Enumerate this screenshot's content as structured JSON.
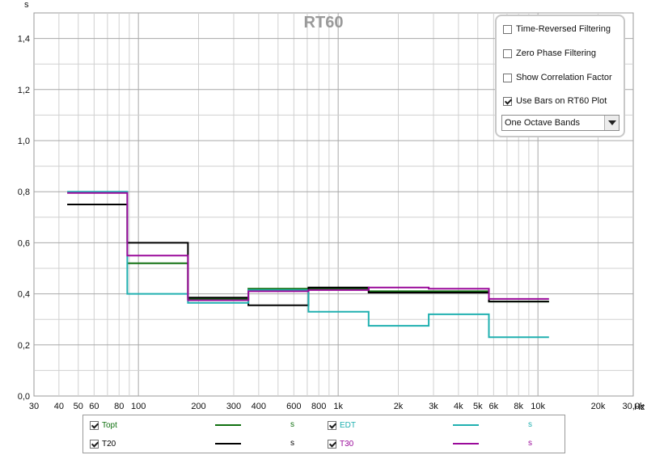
{
  "chart_data": {
    "type": "line",
    "title": "RT60",
    "ylabel": "s",
    "xlabel": "Hz",
    "x_scale": "log",
    "xlim": [
      30,
      30000
    ],
    "ylim": [
      0,
      1.5
    ],
    "x_ticks": [
      {
        "value": 30,
        "label": "30"
      },
      {
        "value": 40,
        "label": "40"
      },
      {
        "value": 50,
        "label": "50"
      },
      {
        "value": 60,
        "label": "60"
      },
      {
        "value": 80,
        "label": "80"
      },
      {
        "value": 100,
        "label": "100"
      },
      {
        "value": 200,
        "label": "200"
      },
      {
        "value": 300,
        "label": "300"
      },
      {
        "value": 400,
        "label": "400"
      },
      {
        "value": 600,
        "label": "600"
      },
      {
        "value": 800,
        "label": "800"
      },
      {
        "value": 1000,
        "label": "1k"
      },
      {
        "value": 2000,
        "label": "2k"
      },
      {
        "value": 3000,
        "label": "3k"
      },
      {
        "value": 4000,
        "label": "4k"
      },
      {
        "value": 5000,
        "label": "5k"
      },
      {
        "value": 6000,
        "label": "6k"
      },
      {
        "value": 8000,
        "label": "8k"
      },
      {
        "value": 10000,
        "label": "10k"
      },
      {
        "value": 20000,
        "label": "20k"
      },
      {
        "value": 30000,
        "label": "30,0k"
      }
    ],
    "y_ticks": [
      {
        "value": 0.0,
        "label": "0,0"
      },
      {
        "value": 0.2,
        "label": "0,2"
      },
      {
        "value": 0.4,
        "label": "0,4"
      },
      {
        "value": 0.6,
        "label": "0,6"
      },
      {
        "value": 0.8,
        "label": "0,8"
      },
      {
        "value": 1.0,
        "label": "1,0"
      },
      {
        "value": 1.2,
        "label": "1,2"
      },
      {
        "value": 1.4,
        "label": "1,4"
      }
    ],
    "grid": true,
    "bar_edges_hz": [
      44,
      88,
      177,
      355,
      710,
      1420,
      2840,
      5680,
      11360
    ],
    "series": [
      {
        "name": "Topt",
        "color": "#107010",
        "values": [
          null,
          0.52,
          0.38,
          0.42,
          0.42,
          0.41,
          0.41,
          0.37
        ]
      },
      {
        "name": "T20",
        "color": "#000000",
        "values": [
          0.75,
          0.6,
          0.385,
          0.355,
          0.425,
          0.405,
          0.405,
          0.37
        ]
      },
      {
        "name": "EDT",
        "color": "#20b0b0",
        "values": [
          0.8,
          0.4,
          0.365,
          0.415,
          0.33,
          0.275,
          0.32,
          0.23
        ]
      },
      {
        "name": "T30",
        "color": "#9a0a9a",
        "values": [
          0.795,
          0.55,
          0.375,
          0.41,
          0.415,
          0.425,
          0.42,
          0.38
        ]
      }
    ]
  },
  "options": {
    "time_reversed": {
      "label": "Time-Reversed Filtering",
      "checked": false
    },
    "zero_phase": {
      "label": "Zero Phase Filtering",
      "checked": false
    },
    "correlation": {
      "label": "Show Correlation Factor",
      "checked": false
    },
    "use_bars": {
      "label": "Use Bars on RT60 Plot",
      "checked": true
    },
    "band_select": {
      "value": "One Octave Bands"
    }
  },
  "legend": {
    "items": [
      {
        "label": "Topt",
        "unit": "s",
        "checked": true,
        "color": "#107010"
      },
      {
        "label": "EDT",
        "unit": "s",
        "checked": true,
        "color": "#20b0b0"
      },
      {
        "label": "T20",
        "unit": "s",
        "checked": true,
        "color": "#000000"
      },
      {
        "label": "T30",
        "unit": "s",
        "checked": true,
        "color": "#9a0a9a"
      }
    ]
  }
}
